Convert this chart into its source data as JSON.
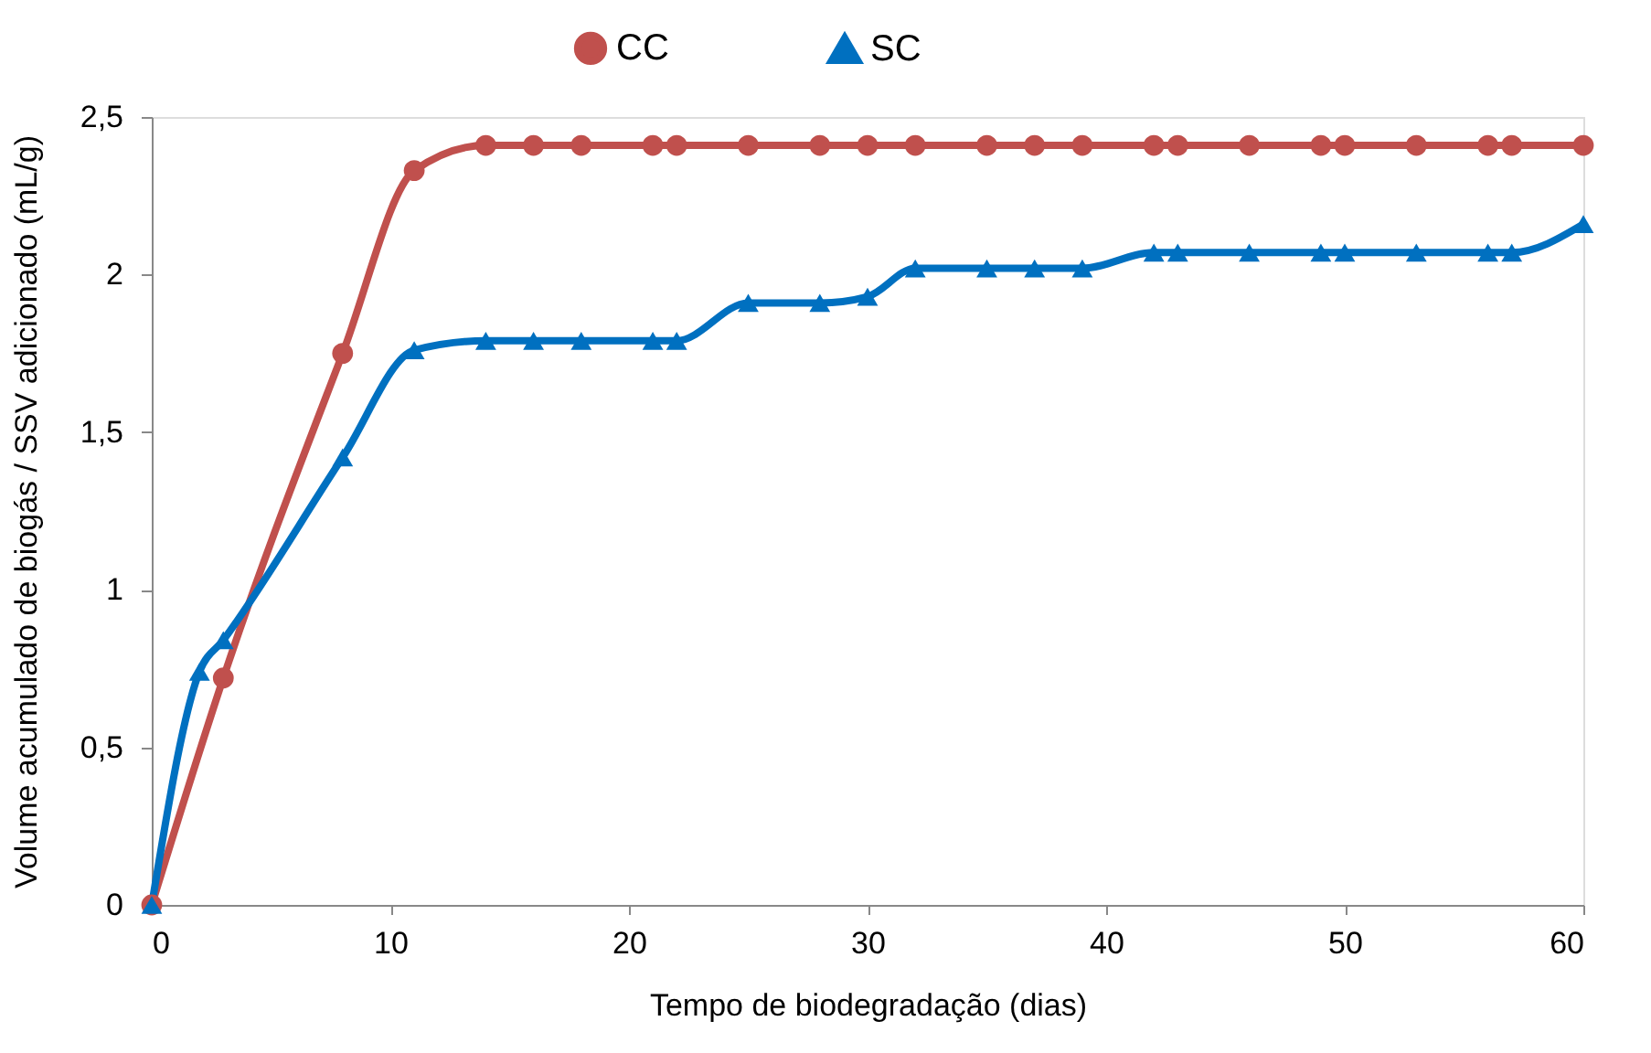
{
  "chart_data": {
    "type": "line",
    "xlabel": "Tempo  de biodegradação (dias)",
    "ylabel": "Volume acumulado de biogás / SSV adicionado (mL/g)",
    "xlim": [
      0,
      60
    ],
    "xticks": [
      0,
      10,
      20,
      30,
      40,
      50,
      60
    ],
    "ylim": [
      0,
      2.5
    ],
    "yticks": [
      0,
      {
        "value": 0.5,
        "label": "0,5"
      },
      1,
      {
        "value": 1.5,
        "label": "1,5"
      },
      2,
      {
        "value": 2.5,
        "label": "2,5"
      }
    ],
    "grid": false,
    "legend": "top",
    "line_style": "solid",
    "x": [
      0,
      2,
      3,
      8,
      11,
      14,
      16,
      18,
      21,
      22,
      25,
      28,
      30,
      32,
      35,
      37,
      39,
      42,
      43,
      46,
      49,
      50,
      53,
      56,
      57,
      60
    ],
    "series": [
      {
        "name": "CC",
        "color": "#c0504d",
        "marker": "circle",
        "x": [
          0,
          3,
          8,
          11,
          14,
          16,
          18,
          21,
          22,
          25,
          28,
          30,
          32,
          35,
          37,
          39,
          42,
          43,
          46,
          49,
          50,
          53,
          56,
          57,
          60
        ],
        "values": [
          0,
          0.72,
          1.75,
          2.33,
          2.41,
          2.41,
          2.41,
          2.41,
          2.41,
          2.41,
          2.41,
          2.41,
          2.41,
          2.41,
          2.41,
          2.41,
          2.41,
          2.41,
          2.41,
          2.41,
          2.41,
          2.41,
          2.41,
          2.41,
          2.41
        ]
      },
      {
        "name": "SC",
        "color": "#0070c0",
        "marker": "triangle",
        "values": [
          0,
          0.74,
          0.84,
          1.42,
          1.76,
          1.79,
          1.79,
          1.79,
          1.79,
          1.79,
          1.91,
          1.91,
          1.93,
          2.02,
          2.02,
          2.02,
          2.02,
          2.07,
          2.07,
          2.07,
          2.07,
          2.07,
          2.07,
          2.07,
          2.07,
          2.16
        ]
      }
    ]
  }
}
